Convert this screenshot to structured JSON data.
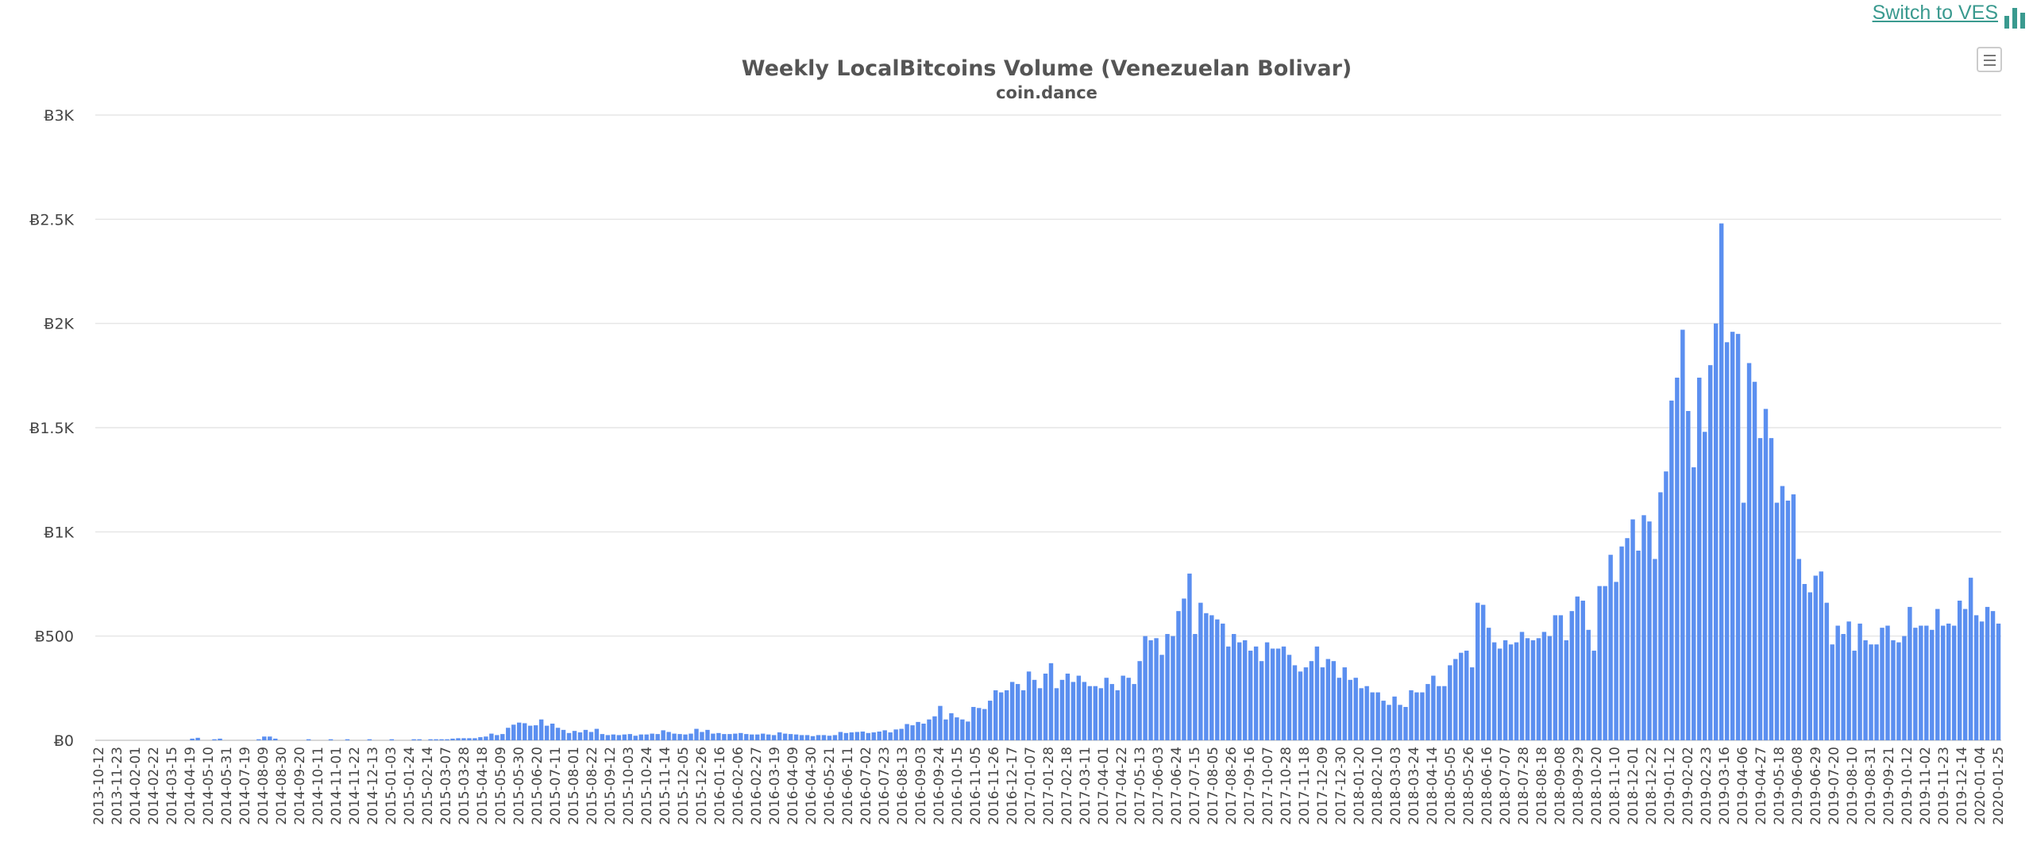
{
  "header": {
    "switch_label": "Switch to VES"
  },
  "icons": {
    "switch": "bar-chart-icon",
    "menu": "hamburger-menu-icon"
  },
  "colors": {
    "bar": "#5b8ff0",
    "link": "#3a9a8f",
    "grid": "#e6e6e6"
  },
  "chart_data": {
    "type": "bar",
    "title": "Weekly LocalBitcoins Volume (Venezuelan Bolivar)",
    "subtitle": "coin.dance",
    "xlabel": "",
    "ylabel": "",
    "ylim": [
      0,
      3000
    ],
    "yticks": [
      {
        "value": 0,
        "label": "Ƀ0"
      },
      {
        "value": 500,
        "label": "Ƀ500"
      },
      {
        "value": 1000,
        "label": "Ƀ1K"
      },
      {
        "value": 1500,
        "label": "Ƀ1.5K"
      },
      {
        "value": 2000,
        "label": "Ƀ2K"
      },
      {
        "value": 2500,
        "label": "Ƀ2.5K"
      },
      {
        "value": 3000,
        "label": "Ƀ3K"
      }
    ],
    "grid": true,
    "legend": "none",
    "x_start": "2013-10-12",
    "x_tick_labels": [
      "2013-10-12",
      "2013-11-23",
      "2014-02-01",
      "2014-02-22",
      "2014-03-15",
      "2014-04-19",
      "2014-05-10",
      "2014-05-31",
      "2014-07-19",
      "2014-08-09",
      "2014-08-30",
      "2014-09-20",
      "2014-10-11",
      "2014-11-01",
      "2014-11-22",
      "2014-12-13",
      "2015-01-03",
      "2015-01-24",
      "2015-02-14",
      "2015-03-07",
      "2015-03-28",
      "2015-04-18",
      "2015-05-09",
      "2015-05-30",
      "2015-06-20",
      "2015-07-11",
      "2015-08-01",
      "2015-08-22",
      "2015-09-12",
      "2015-10-03",
      "2015-10-24",
      "2015-11-14",
      "2015-12-05",
      "2015-12-26",
      "2016-01-16",
      "2016-02-06",
      "2016-02-27",
      "2016-03-19",
      "2016-04-09",
      "2016-04-30",
      "2016-05-21",
      "2016-06-11",
      "2016-07-02",
      "2016-07-23",
      "2016-08-13",
      "2016-09-03",
      "2016-09-24",
      "2016-10-15",
      "2016-11-05",
      "2016-11-26",
      "2016-12-17",
      "2017-01-07",
      "2017-01-28",
      "2017-02-18",
      "2017-03-11",
      "2017-04-01",
      "2017-04-22",
      "2017-05-13",
      "2017-06-03",
      "2017-06-24",
      "2017-07-15",
      "2017-08-05",
      "2017-08-26",
      "2017-09-16",
      "2017-10-07",
      "2017-10-28",
      "2017-11-18",
      "2017-12-09",
      "2017-12-30",
      "2018-01-20",
      "2018-02-10",
      "2018-03-03",
      "2018-03-24",
      "2018-04-14",
      "2018-05-05",
      "2018-05-26",
      "2018-06-16",
      "2018-07-07",
      "2018-07-28",
      "2018-08-18",
      "2018-09-08",
      "2018-09-29",
      "2018-10-20",
      "2018-11-10",
      "2018-12-01",
      "2018-12-22",
      "2019-01-12",
      "2019-02-02",
      "2019-02-23",
      "2019-03-16",
      "2019-04-06",
      "2019-04-27",
      "2019-05-18",
      "2019-06-08",
      "2019-06-29",
      "2019-07-20",
      "2019-08-10",
      "2019-08-31",
      "2019-09-21",
      "2019-10-12",
      "2019-11-02",
      "2019-11-23",
      "2019-12-14",
      "2020-01-04",
      "2020-01-25"
    ],
    "values": [
      0,
      0,
      0,
      0,
      0,
      0,
      0,
      0,
      0,
      0,
      0,
      0,
      0,
      0,
      0,
      0,
      0,
      8,
      12,
      0,
      0,
      5,
      8,
      0,
      0,
      0,
      0,
      0,
      0,
      5,
      18,
      18,
      8,
      0,
      0,
      0,
      0,
      0,
      5,
      0,
      0,
      0,
      5,
      0,
      0,
      5,
      0,
      0,
      0,
      5,
      0,
      0,
      0,
      5,
      0,
      0,
      0,
      5,
      5,
      0,
      5,
      5,
      5,
      5,
      8,
      10,
      10,
      10,
      10,
      15,
      18,
      32,
      25,
      30,
      60,
      75,
      85,
      82,
      70,
      72,
      100,
      70,
      80,
      60,
      50,
      35,
      45,
      38,
      50,
      40,
      55,
      30,
      25,
      28,
      25,
      28,
      30,
      22,
      28,
      28,
      32,
      30,
      48,
      40,
      32,
      30,
      28,
      32,
      55,
      40,
      50,
      32,
      35,
      30,
      30,
      32,
      35,
      30,
      28,
      28,
      32,
      28,
      25,
      38,
      32,
      30,
      28,
      25,
      25,
      20,
      25,
      25,
      22,
      25,
      40,
      35,
      38,
      40,
      42,
      35,
      38,
      42,
      48,
      38,
      52,
      55,
      78,
      72,
      88,
      80,
      100,
      115,
      165,
      100,
      130,
      110,
      100,
      90,
      160,
      155,
      150,
      190,
      240,
      230,
      240,
      280,
      270,
      240,
      330,
      290,
      250,
      320,
      370,
      250,
      290,
      320,
      280,
      310,
      280,
      260,
      260,
      250,
      300,
      270,
      240,
      310,
      300,
      270,
      380,
      500,
      480,
      490,
      410,
      510,
      500,
      620,
      680,
      800,
      510,
      660,
      610,
      600,
      580,
      560,
      450,
      510,
      470,
      480,
      430,
      450,
      380,
      470,
      440,
      440,
      450,
      410,
      360,
      330,
      350,
      380,
      450,
      350,
      390,
      380,
      300,
      350,
      290,
      300,
      250,
      260,
      230,
      230,
      190,
      170,
      210,
      170,
      160,
      240,
      230,
      230,
      270,
      310,
      260,
      260,
      360,
      390,
      420,
      430,
      350,
      660,
      650,
      540,
      470,
      440,
      480,
      460,
      470,
      520,
      490,
      480,
      490,
      520,
      500,
      600,
      600,
      480,
      620,
      690,
      670,
      530,
      430,
      740,
      740,
      890,
      760,
      930,
      970,
      1060,
      910,
      1080,
      1050,
      870,
      1190,
      1290,
      1630,
      1740,
      1970,
      1580,
      1310,
      1740,
      1480,
      1800,
      2000,
      2480,
      1910,
      1960,
      1950,
      1140,
      1810,
      1720,
      1450,
      1590,
      1450,
      1140,
      1220,
      1150,
      1180,
      870,
      750,
      710,
      790,
      810,
      660,
      460,
      550,
      510,
      570,
      430,
      560,
      480,
      460,
      460,
      540,
      550,
      480,
      470,
      500,
      640,
      540,
      550,
      550,
      530,
      630,
      550,
      560,
      550,
      670,
      630,
      780,
      600,
      570,
      640,
      620,
      560
    ]
  }
}
